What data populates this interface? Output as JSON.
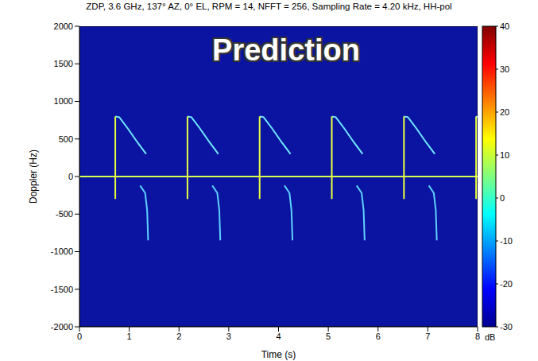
{
  "chart_data": {
    "type": "spectrogram",
    "title": "ZDP, 3.6 GHz, 137° AZ, 0° EL, RPM = 14, NFFT = 256, Sampling Rate = 4.20 kHz, HH-pol",
    "annotation": "Prediction",
    "x_label": "Time (s)",
    "y_label": "Doppler (Hz)",
    "xlim": [
      0,
      8
    ],
    "xticks": [
      0,
      1,
      2,
      3,
      4,
      5,
      6,
      7,
      8
    ],
    "ylim": [
      -2000,
      2000
    ],
    "yticks": [
      -2000,
      -1500,
      -1000,
      -500,
      0,
      500,
      1000,
      1500,
      2000
    ],
    "grid": false,
    "background": "#0a14a0",
    "series": [
      {
        "color": "#d8ff50",
        "x": [
          0,
          8
        ],
        "values": [
          0,
          0
        ]
      },
      {
        "color": "#6fe8ff",
        "x": [
          0.72,
          0.8,
          0.97,
          1.17,
          1.34,
          1.4,
          2.17,
          2.25,
          2.42,
          2.62,
          2.79,
          2.85,
          3.62,
          3.7,
          3.87,
          4.07,
          4.24,
          4.3,
          5.07,
          5.15,
          5.32,
          5.52,
          5.69,
          5.75,
          6.52,
          6.6,
          6.77,
          6.97,
          7.14,
          7.2,
          7.97,
          8.0
        ],
        "values": [
          800,
          790,
          640,
          450,
          300,
          null,
          800,
          790,
          640,
          450,
          300,
          null,
          800,
          790,
          640,
          450,
          300,
          null,
          800,
          790,
          640,
          450,
          300,
          null,
          800,
          790,
          640,
          450,
          300,
          null,
          800,
          790
        ]
      },
      {
        "color": "#5fd0ff",
        "x": [
          1.22,
          1.32,
          1.36,
          1.38,
          1.42,
          2.67,
          2.77,
          2.81,
          2.83,
          2.87,
          4.12,
          4.22,
          4.26,
          4.28,
          4.32,
          5.57,
          5.67,
          5.71,
          5.73,
          5.77,
          7.02,
          7.12,
          7.16,
          7.18
        ],
        "values": [
          -120,
          -220,
          -450,
          -850,
          null,
          -120,
          -220,
          -450,
          -850,
          null,
          -120,
          -220,
          -450,
          -850,
          null,
          -120,
          -220,
          -450,
          -850,
          null,
          -120,
          -220,
          -450,
          -850
        ]
      },
      {
        "color": "#e8ff40",
        "x": [
          0.72,
          0.72,
          0.73,
          2.17,
          2.17,
          2.18,
          3.62,
          3.62,
          3.63,
          5.07,
          5.07,
          5.08,
          6.52,
          6.52,
          6.53,
          7.97,
          7.97
        ],
        "values": [
          -300,
          800,
          null,
          -300,
          800,
          null,
          -300,
          800,
          null,
          -300,
          800,
          null,
          -300,
          800,
          null,
          -300,
          800
        ]
      }
    ],
    "colorbar": {
      "label": "dB",
      "range": [
        -30,
        40
      ],
      "ticks": [
        -30,
        -20,
        -10,
        0,
        10,
        20,
        30,
        40
      ]
    }
  }
}
